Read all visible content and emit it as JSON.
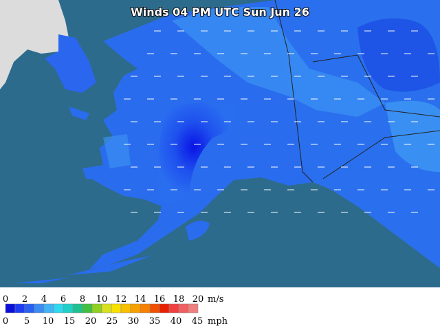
{
  "title": "Winds 04 PM UTC Sun Jun 26",
  "legend": {
    "ms": {
      "labels": [
        0,
        2,
        4,
        6,
        8,
        10,
        12,
        14,
        16,
        18,
        20
      ],
      "unit": "m/s"
    },
    "mph": {
      "labels": [
        0,
        5,
        10,
        15,
        20,
        25,
        30,
        35,
        40,
        45
      ],
      "unit": "mph"
    }
  }
}
